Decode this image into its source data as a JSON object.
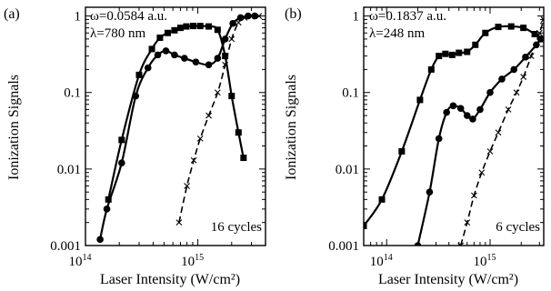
{
  "chart_data": [
    {
      "type": "line",
      "panel_label": "(a)",
      "annotations": [
        "ω=0.0584 a.u.",
        "λ=780 nm"
      ],
      "cycles_label": "16 cycles",
      "xlabel": "Laser Intensity (W/cm²)",
      "ylabel": "Ionization Signals",
      "xscale": "log",
      "yscale": "log",
      "xlim": [
        100000000000000.0,
        4000000000000000.0
      ],
      "ylim": [
        0.001,
        1.3
      ],
      "x_ticks": [
        {
          "value": 100000000000000.0,
          "mantissa": "10",
          "exp": "14"
        },
        {
          "value": 1000000000000000.0,
          "mantissa": "10",
          "exp": "15"
        }
      ],
      "y_ticks": [
        {
          "value": 1,
          "label": "1"
        },
        {
          "value": 0.1,
          "label": "0.1"
        },
        {
          "value": 0.01,
          "label": "0.01"
        },
        {
          "value": 0.001,
          "label": "0.001"
        }
      ],
      "series": [
        {
          "marker": "square",
          "dash": "solid",
          "x": [
            160000000000000.0,
            210000000000000.0,
            300000000000000.0,
            390000000000000.0,
            460000000000000.0,
            540000000000000.0,
            620000000000000.0,
            700000000000000.0,
            790000000000000.0,
            910000000000000.0,
            1050000000000000.0,
            1250000000000000.0,
            1500000000000000.0,
            1750000000000000.0,
            2000000000000000.0,
            2300000000000000.0,
            2550000000000000.0
          ],
          "y": [
            0.004,
            0.024,
            0.17,
            0.37,
            0.52,
            0.6,
            0.65,
            0.7,
            0.73,
            0.74,
            0.74,
            0.73,
            0.66,
            0.3,
            0.09,
            0.03,
            0.014
          ]
        },
        {
          "marker": "circle",
          "dash": "solid",
          "x": [
            135000000000000.0,
            155000000000000.0,
            210000000000000.0,
            280000000000000.0,
            360000000000000.0,
            440000000000000.0,
            520000000000000.0,
            620000000000000.0,
            760000000000000.0,
            960000000000000.0,
            1250000000000000.0,
            1500000000000000.0,
            1750000000000000.0,
            2050000000000000.0,
            2400000000000000.0,
            2800000000000000.0,
            3200000000000000.0
          ],
          "y": [
            0.0012,
            0.003,
            0.012,
            0.09,
            0.21,
            0.31,
            0.35,
            0.31,
            0.28,
            0.25,
            0.23,
            0.28,
            0.5,
            0.8,
            0.95,
            1.0,
            1.0
          ]
        },
        {
          "marker": "x",
          "dash": "dashed",
          "x": [
            680000000000000.0,
            800000000000000.0,
            920000000000000.0,
            1050000000000000.0,
            1250000000000000.0,
            1500000000000000.0,
            1750000000000000.0,
            2000000000000000.0,
            2300000000000000.0,
            2600000000000000.0,
            3000000000000000.0,
            3500000000000000.0
          ],
          "y": [
            0.002,
            0.006,
            0.013,
            0.025,
            0.05,
            0.1,
            0.23,
            0.5,
            0.82,
            0.95,
            1.0,
            1.0
          ]
        }
      ]
    },
    {
      "type": "line",
      "panel_label": "(b)",
      "annotations": [
        "ω=0.1837 a.u.",
        "λ=248 nm"
      ],
      "cycles_label": "6 cycles",
      "xlabel": "Laser Intensity (W/cm²)",
      "ylabel": "Ionization Signals",
      "xscale": "log",
      "yscale": "log",
      "xlim": [
        60000000000000.0,
        3300000000000000.0
      ],
      "ylim": [
        0.001,
        1.3
      ],
      "x_ticks": [
        {
          "value": 100000000000000.0,
          "mantissa": "10",
          "exp": "14"
        },
        {
          "value": 1000000000000000.0,
          "mantissa": "10",
          "exp": "15"
        }
      ],
      "y_ticks": [
        {
          "value": 1,
          "label": "1"
        },
        {
          "value": 0.1,
          "label": "0.1"
        },
        {
          "value": 0.01,
          "label": "0.01"
        },
        {
          "value": 0.001,
          "label": "0.001"
        }
      ],
      "series": [
        {
          "marker": "square",
          "dash": "solid",
          "x": [
            60000000000000.0,
            90000000000000.0,
            140000000000000.0,
            210000000000000.0,
            270000000000000.0,
            320000000000000.0,
            370000000000000.0,
            430000000000000.0,
            500000000000000.0,
            600000000000000.0,
            720000000000000.0,
            900000000000000.0,
            1200000000000000.0,
            1600000000000000.0,
            2100000000000000.0,
            2700000000000000.0,
            3100000000000000.0
          ],
          "y": [
            0.0018,
            0.004,
            0.017,
            0.08,
            0.2,
            0.3,
            0.32,
            0.31,
            0.33,
            0.34,
            0.42,
            0.6,
            0.72,
            0.73,
            0.7,
            0.58,
            0.5
          ]
        },
        {
          "marker": "circle",
          "dash": "solid",
          "x": [
            200000000000000.0,
            260000000000000.0,
            320000000000000.0,
            380000000000000.0,
            440000000000000.0,
            520000000000000.0,
            600000000000000.0,
            680000000000000.0,
            800000000000000.0,
            1000000000000000.0,
            1300000000000000.0,
            1700000000000000.0,
            2200000000000000.0,
            2800000000000000.0,
            3100000000000000.0
          ],
          "y": [
            0.001,
            0.005,
            0.025,
            0.055,
            0.067,
            0.062,
            0.05,
            0.045,
            0.06,
            0.1,
            0.15,
            0.2,
            0.29,
            0.42,
            0.5
          ]
        },
        {
          "marker": "x",
          "dash": "dashed",
          "x": [
            520000000000000.0,
            600000000000000.0,
            700000000000000.0,
            830000000000000.0,
            1000000000000000.0,
            1200000000000000.0,
            1500000000000000.0,
            1800000000000000.0,
            2100000000000000.0,
            2500000000000000.0,
            3000000000000000.0,
            3300000000000000.0
          ],
          "y": [
            0.001,
            0.002,
            0.0045,
            0.009,
            0.017,
            0.03,
            0.06,
            0.1,
            0.16,
            0.3,
            0.6,
            0.9
          ]
        }
      ]
    }
  ]
}
